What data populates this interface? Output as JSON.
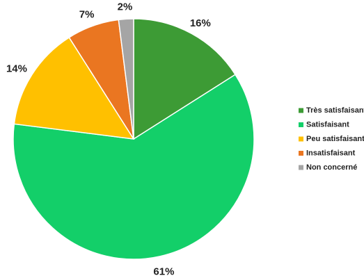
{
  "chart_data": {
    "type": "pie",
    "categories": [
      "Très satisfaisant",
      "Satisfaisant",
      "Peu satisfaisant",
      "Insatisfaisant",
      "Non concerné"
    ],
    "values": [
      16,
      61,
      14,
      7,
      2
    ],
    "value_labels": [
      "16%",
      "61%",
      "14%",
      "7%",
      "2%"
    ],
    "colors": [
      "#3d9b35",
      "#13cf69",
      "#ffc000",
      "#ea7621",
      "#a5a5a5"
    ],
    "legend": "right"
  }
}
